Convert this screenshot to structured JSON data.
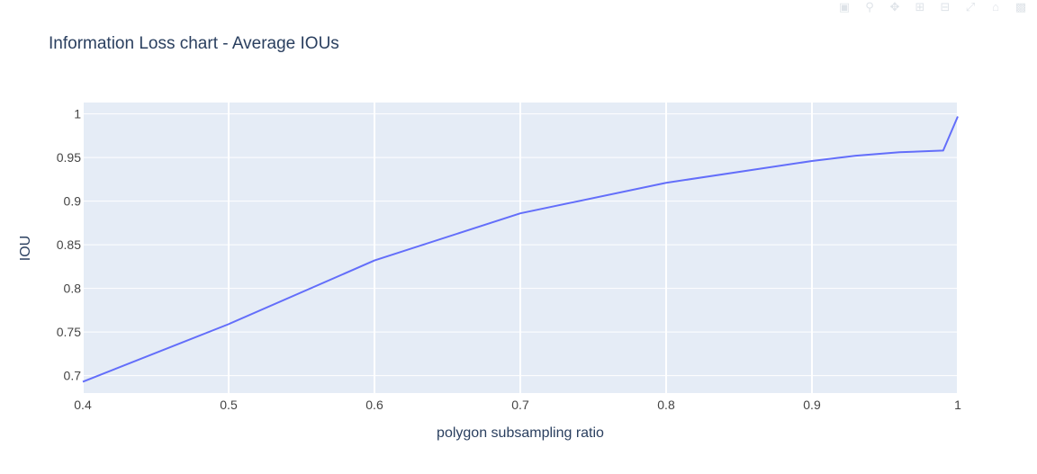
{
  "chart_data": {
    "type": "line",
    "title": "Information Loss chart - Average IOUs",
    "xlabel": "polygon subsampling ratio",
    "ylabel": "IOU",
    "xlim": [
      0.4,
      1.0
    ],
    "ylim": [
      0.68,
      1.013
    ],
    "x_ticks": [
      0.4,
      0.5,
      0.6,
      0.7,
      0.8,
      0.9,
      1.0
    ],
    "x_tick_labels": [
      "0.4",
      "0.5",
      "0.6",
      "0.7",
      "0.8",
      "0.9",
      "1"
    ],
    "y_ticks": [
      0.7,
      0.75,
      0.8,
      0.85,
      0.9,
      0.95,
      1.0
    ],
    "y_tick_labels": [
      "0.7",
      "0.75",
      "0.8",
      "0.85",
      "0.9",
      "0.95",
      "1"
    ],
    "grid": true,
    "series": [
      {
        "name": "",
        "color": "#636efa",
        "x": [
          0.4,
          0.5,
          0.6,
          0.7,
          0.8,
          0.9,
          0.93,
          0.96,
          0.99,
          1.0
        ],
        "y": [
          0.693,
          0.759,
          0.832,
          0.886,
          0.921,
          0.946,
          0.952,
          0.956,
          0.958,
          0.997
        ]
      }
    ]
  },
  "colors": {
    "plot_background": "#e5ecf6",
    "grid": "#ffffff",
    "text": "#2a3f5f",
    "tick_text": "#444444"
  },
  "modebar": {
    "icons": [
      "camera-icon",
      "zoom-icon",
      "pan-icon",
      "zoom-in-icon",
      "zoom-out-icon",
      "autoscale-icon",
      "reset-icon",
      "plotly-logo-icon"
    ]
  }
}
